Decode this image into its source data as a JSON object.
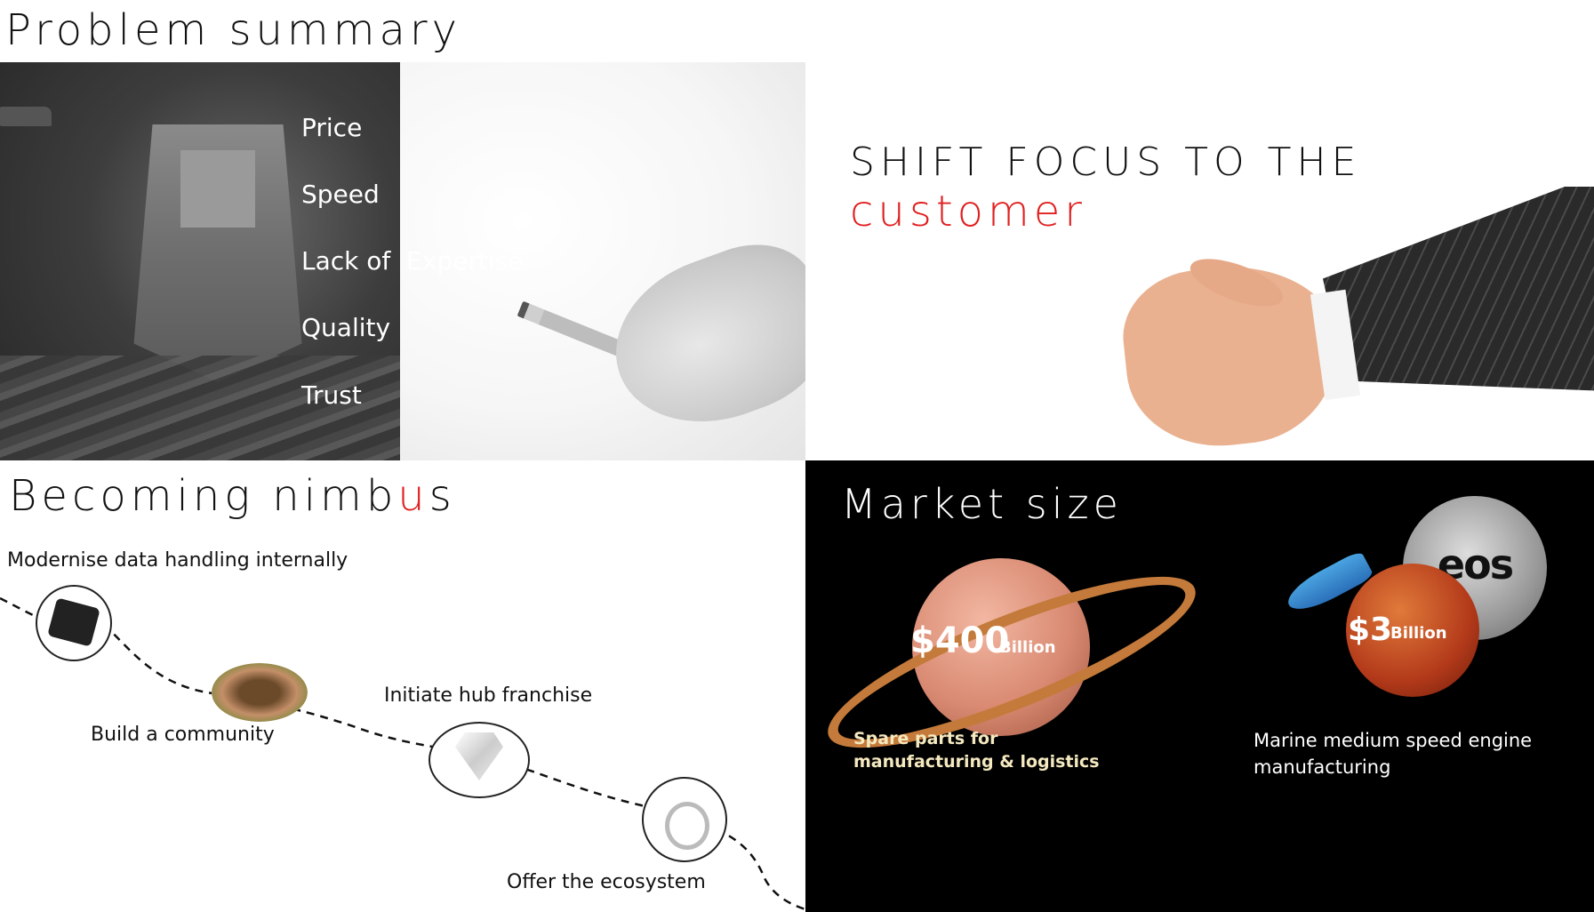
{
  "slides": {
    "problem": {
      "title": "Problem summary",
      "items": [
        "Price",
        "Speed",
        "Lack of  Expertise",
        "Quality",
        "Trust"
      ]
    },
    "shift": {
      "line1": "SHIFT FOCUS TO THE",
      "line2": "customer"
    },
    "nimbus": {
      "title_pre": "Becoming nimb",
      "title_accent": "u",
      "title_post": "s",
      "steps": [
        "Modernise data handling internally",
        "Build a community",
        "Initiate hub franchise",
        "Offer the ecosystem"
      ]
    },
    "market": {
      "title": "Market size",
      "planet1_amount": "$400",
      "planet1_unit": "Billion",
      "planet1_caption": "Spare parts for manufacturing & logistics",
      "planet2_amount": "$3",
      "planet2_unit": "Billion",
      "planet2_caption": "Marine medium speed engine manufacturing",
      "moon_logo": "eos"
    }
  },
  "colors": {
    "accent_red": "#e02020",
    "market_bg": "#000000"
  }
}
